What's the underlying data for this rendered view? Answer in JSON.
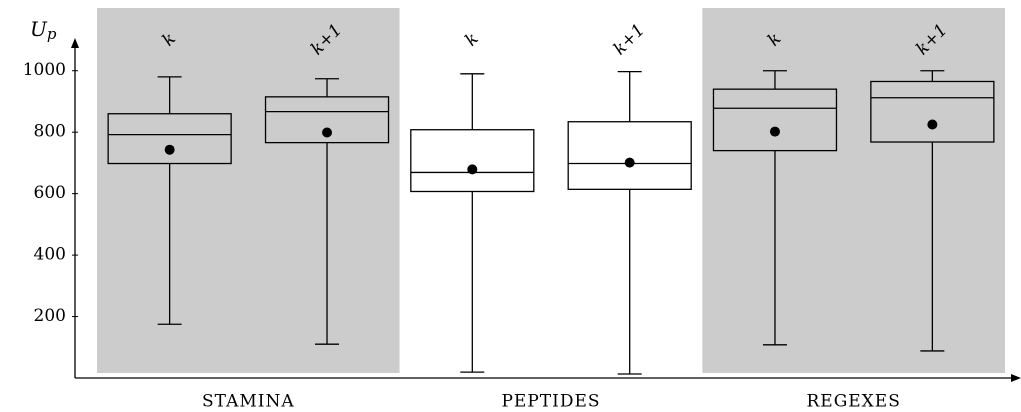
{
  "chart_data": {
    "type": "box",
    "y_label": "U",
    "y_label_sub": "p",
    "ylim": [
      0,
      1100
    ],
    "yticks": [
      200,
      400,
      600,
      800,
      1000
    ],
    "group_colors": [
      "#cccccc",
      "#ffffff",
      "#cccccc"
    ],
    "groups": [
      {
        "name": "STAMINA",
        "boxes": [
          {
            "label": "k",
            "min": 175,
            "q1": 698,
            "median": 792,
            "q3": 860,
            "max": 980,
            "mean": 743
          },
          {
            "label": "k+1",
            "min": 110,
            "q1": 766,
            "median": 867,
            "q3": 915,
            "max": 974,
            "mean": 799
          }
        ]
      },
      {
        "name": "PEPTIDES",
        "boxes": [
          {
            "label": "k",
            "min": 19,
            "q1": 607,
            "median": 669,
            "q3": 808,
            "max": 990,
            "mean": 679
          },
          {
            "label": "k+1",
            "min": 13,
            "q1": 614,
            "median": 698,
            "q3": 834,
            "max": 997,
            "mean": 701
          }
        ]
      },
      {
        "name": "REGEXES",
        "boxes": [
          {
            "label": "k",
            "min": 108,
            "q1": 740,
            "median": 878,
            "q3": 940,
            "max": 1000,
            "mean": 802
          },
          {
            "label": "k+1",
            "min": 88,
            "q1": 768,
            "median": 912,
            "q3": 965,
            "max": 1000,
            "mean": 825
          }
        ]
      }
    ]
  }
}
